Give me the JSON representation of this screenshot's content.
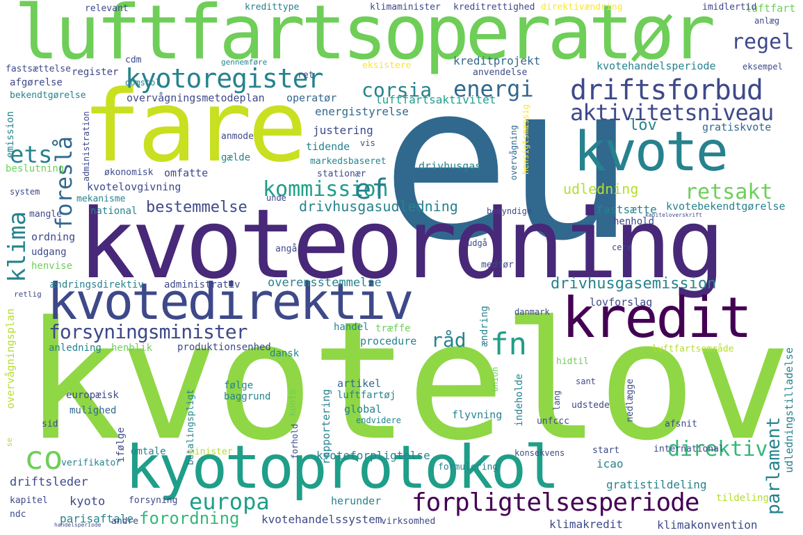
{
  "palette": {
    "background": "#ffffff",
    "colors": [
      "#440154",
      "#482878",
      "#3e4989",
      "#31688e",
      "#26828e",
      "#1f9e89",
      "#35b779",
      "#6ece58",
      "#b5de2b",
      "#fde725"
    ]
  },
  "words": {
    "kvotelov": "kvotelov",
    "eu": "eu",
    "kvoteordning": "kvoteordning",
    "luftfartsoperator": "luftfartsoperatør",
    "fare": "fare",
    "kyotoprotokol": "kyotoprotokol",
    "kvotedirektiv": "kvotedirektiv",
    "kredit": "kredit",
    "kvote": "kvote",
    "kyotoregister": "kyotoregister",
    "driftsforbud": "driftsforbud",
    "corsia": "corsia",
    "energi": "energi",
    "aktivitetsniveau": "aktivitetsniveau",
    "forpligtelsesperiode": "forpligtelsesperiode",
    "forsyningsminister": "forsyningsminister",
    "kommission": "kommission",
    "retsakt": "retsakt",
    "regel": "regel",
    "europa": "europa",
    "direktiv": "direktiv",
    "drivhusgasemission": "drivhusgasemission",
    "drivhusgasudledning": "drivhusgasudledning",
    "bestemmelse": "bestemmelse",
    "forordning": "forordning",
    "ets": "ets",
    "foresla": "foreslå",
    "klima": "klima",
    "co": "co",
    "fn": "fn",
    "ef": "ef",
    "rad": "råd",
    "parlament": "parlament",
    "lov": "lov",
    "udledning": "udledning",
    "kvotehandelsperiode": "kvotehandelsperiode",
    "overvagningsmetodeplan": "overvågningsmetodeplan",
    "luftfartsaktivitet": "luftfartsaktivitet",
    "kreditprojekt": "kreditprojekt",
    "energistyrelse": "energistyrelse",
    "kvotelovgivning": "kvotelovgivning",
    "drivhusgas": "drivhusgas",
    "markedsbaseret": "markedsbaseret",
    "fastsaette": "fastsætte",
    "kvotebekendtgorelse": "kvotebekendtgørelse",
    "gratiskvote": "gratiskvote",
    "lovforslag": "lovforslag",
    "kvoteforpligtelse": "kvoteforpligtelse",
    "kvotehandelssystem": "kvotehandelssystem",
    "gratistildeling": "gratistildeling",
    "klimakredit": "klimakredit",
    "klimakonvention": "klimakonvention",
    "driftsleder": "driftsleder",
    "kyoto": "kyoto",
    "parisaftale": "parisaftale",
    "herunder": "herunder",
    "icao": "icao",
    "rapportering": "rapportering",
    "flyvning": "flyvning",
    "global": "global",
    "artikel": "artikel",
    "luftfartoj": "luftfartøj",
    "baggrund": "baggrund",
    "folge": "følge",
    "mulighed": "mulighed",
    "europaeisk": "europæisk",
    "overvagningsplan": "overvågningsplan",
    "udledningstilladelse": "udledningstilladelse",
    "luftfartsomrade": "luftfartsområde",
    "procedure": "procedure",
    "handel": "handel",
    "traeffe": "træffe",
    "aendring": "ændring",
    "aendringsdirektiv": "ændringsdirektiv",
    "administrativ": "administrativ",
    "overensstemmelse": "overensstemmelse",
    "produktionsenhed": "produktionsenhed",
    "anledning": "anledning",
    "henblik": "henblik",
    "dansk": "dansk",
    "ordning": "ordning",
    "udgang": "udgang",
    "henvise": "henvise",
    "mangle": "mangle",
    "national": "national",
    "mekanisme": "mekanisme",
    "omfatte": "omfatte",
    "okonomisk": "økonomisk",
    "tidende": "tidende",
    "justering": "justering",
    "anmode": "anmode",
    "gaelde": "gælde",
    "operator": "operatør",
    "register": "register",
    "afgorelse": "afgørelse",
    "bekendtgorelse": "bekendtgørelse",
    "fastsaettelse": "fastsættelse",
    "domstol": "domstol",
    "eksistere": "eksistere",
    "ret": "ret",
    "anvendelse": "anvendelse",
    "eksempel": "eksempel",
    "luftfart": "luftfart",
    "anlaeg": "anlæg",
    "imidlertid": "imidlertid",
    "relevant": "relevant",
    "kredittype": "kredittype",
    "klimaminister": "klimaminister",
    "kreditrettighed": "kreditrettighed",
    "direktivaendring": "direktivændring",
    "gennemfore": "gennemføre",
    "cdm": "cdm",
    "emission": "emission",
    "administration": "administration",
    "beslutning": "beslutning",
    "system": "system",
    "vis": "vis",
    "stationaer": "stationær",
    "overvagning": "overvågning",
    "hensigtsmaessig": "hensigtsmæssig",
    "henhold": "henhold",
    "kapiteloverskrift": "kapiteloverskrift",
    "bemyndige": "bemyndige",
    "unde": "unde",
    "anga": "angå",
    "udga": "udgå",
    "medfor": "medfør",
    "cere": "cere",
    "danmark": "danmark",
    "hidtil": "hidtil",
    "sant": "sant",
    "nedlaegge": "nedlægge",
    "udstede": "udstede",
    "unfccc": "unfccc",
    "lang": "lang",
    "union": "union",
    "indeholde": "indeholde",
    "konto": "konto",
    "endvidere": "endvidere",
    "forhold": "forhold",
    "betalingspligt": "betalingspligt",
    "sid": "sid",
    "ifolge": "ifølge",
    "omtale": "omtale",
    "minister": "minister",
    "verifikator": "verifikator",
    "kapitel": "kapitel",
    "ndc": "ndc",
    "forsyning": "forsyning",
    "andre": "andre",
    "virksomhed": "virksomhed",
    "konsekvens": "konsekvens",
    "formulering": "formulering",
    "start": "start",
    "international": "international",
    "afsnit": "afsnit",
    "tildeling": "tildeling",
    "retlig": "retlig",
    "se": "se",
    "handelsperiode": "handelsperiode"
  }
}
